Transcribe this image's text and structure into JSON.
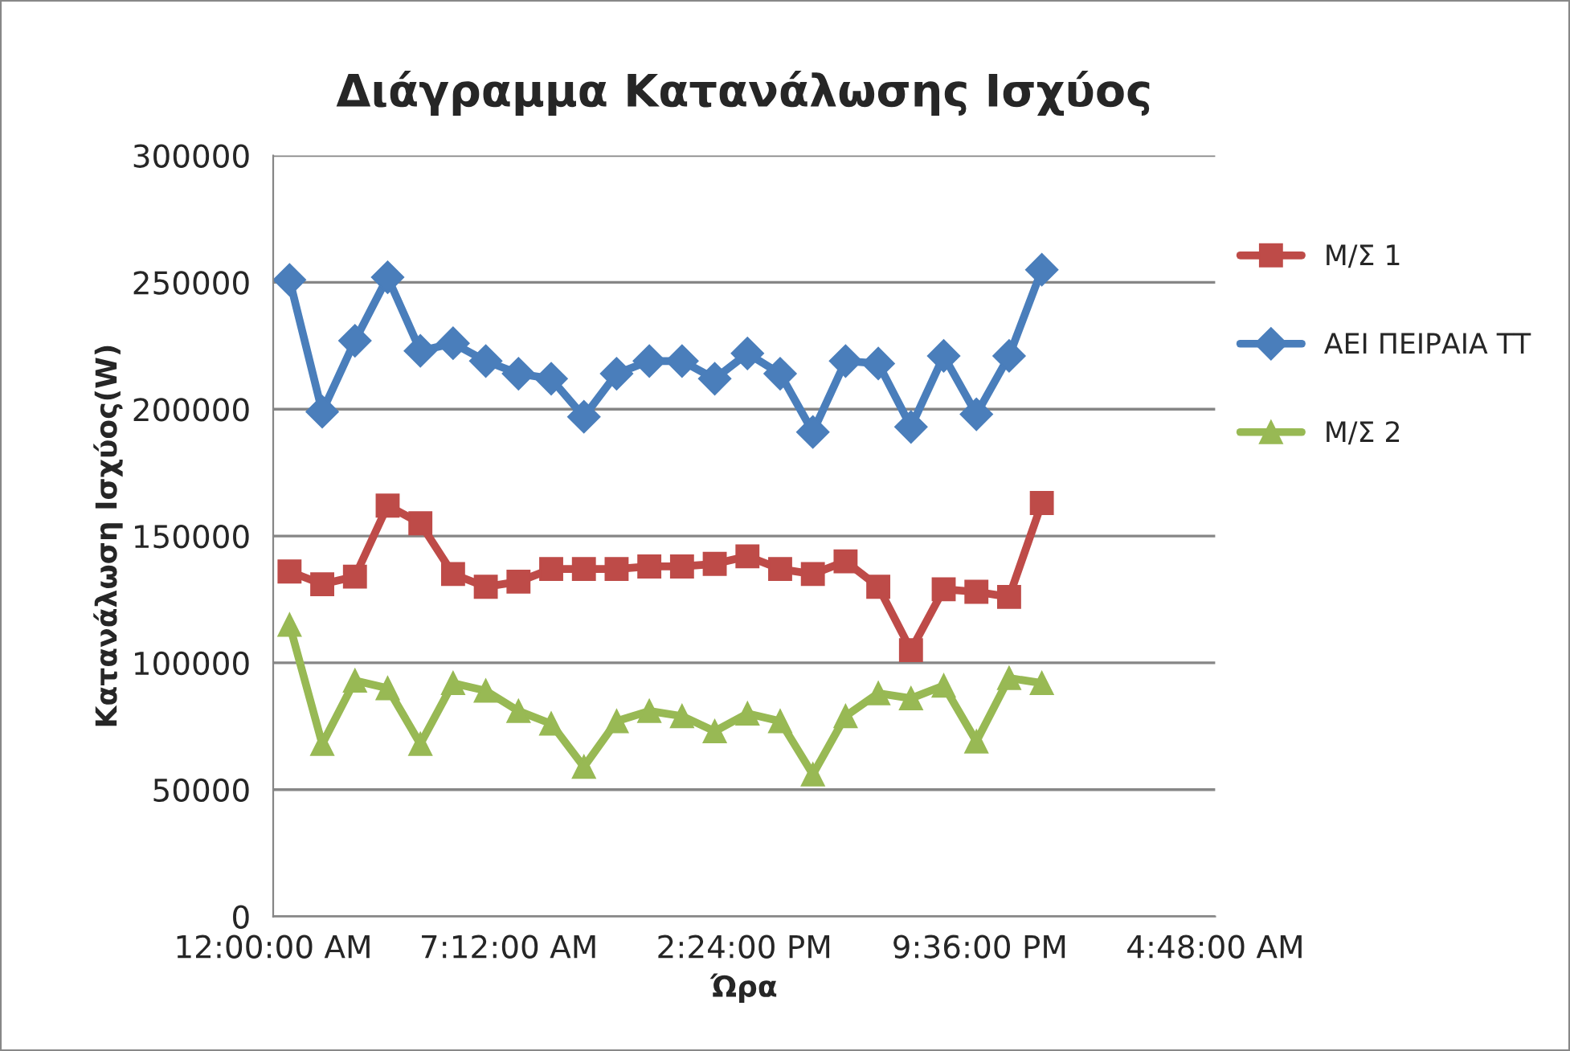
{
  "chart_data": {
    "type": "line",
    "title": "Διάγραμμα Κατανάλωσης Ισχύος",
    "xlabel": "Ώρα",
    "ylabel": "Κατανάλωση Ισχύος(W)",
    "x": [
      "1900-01-01T00:30",
      "1900-01-01T01:30",
      "1900-01-01T02:30",
      "1900-01-01T03:30",
      "1900-01-01T04:30",
      "1900-01-01T05:30",
      "1900-01-01T06:30",
      "1900-01-01T07:30",
      "1900-01-01T08:30",
      "1900-01-01T09:30",
      "1900-01-01T10:30",
      "1900-01-01T11:30",
      "1900-01-01T12:30",
      "1900-01-01T13:30",
      "1900-01-01T14:30",
      "1900-01-01T15:30",
      "1900-01-01T16:30",
      "1900-01-01T17:30",
      "1900-01-01T18:30",
      "1900-01-01T19:30",
      "1900-01-01T20:30",
      "1900-01-01T21:30",
      "1900-01-01T22:30",
      "1900-01-01T23:30"
    ],
    "series": [
      {
        "name": "Μ/Σ 1",
        "color": "#be4b48",
        "marker": "square",
        "values": [
          136000,
          131000,
          134000,
          162000,
          155000,
          135000,
          130000,
          132000,
          137000,
          137000,
          137000,
          138000,
          138000,
          139000,
          142000,
          137000,
          135000,
          140000,
          130000,
          105000,
          129000,
          128000,
          126000,
          163000
        ]
      },
      {
        "name": "ΑΕΙ ΠΕΙΡΑΙΑ ΤΤ",
        "color": "#4a7ebb",
        "marker": "diamond",
        "values": [
          251000,
          199000,
          227000,
          252000,
          223000,
          226000,
          219000,
          214000,
          212000,
          197000,
          214000,
          219000,
          219000,
          212000,
          222000,
          214000,
          191000,
          219000,
          218000,
          193000,
          221000,
          198000,
          221000,
          255000
        ]
      },
      {
        "name": "Μ/Σ 2",
        "color": "#98b954",
        "marker": "triangle",
        "values": [
          115000,
          68000,
          93000,
          90000,
          68000,
          92000,
          89000,
          81000,
          76000,
          59000,
          77000,
          81000,
          79000,
          73000,
          80000,
          77000,
          56000,
          79000,
          88000,
          86000,
          91000,
          69000,
          94000,
          92000
        ]
      }
    ],
    "xlim": [
      "1900-01-01T00:00",
      "1900-01-02T04:48"
    ],
    "xticks": [
      {
        "value": "1900-01-01T00:00",
        "label": "12:00:00 AM"
      },
      {
        "value": "1900-01-01T07:12",
        "label": "7:12:00 AM"
      },
      {
        "value": "1900-01-01T14:24",
        "label": "2:24:00 PM"
      },
      {
        "value": "1900-01-01T21:36",
        "label": "9:36:00 PM"
      },
      {
        "value": "1900-01-02T04:48",
        "label": "4:48:00 AM"
      }
    ],
    "ylim": [
      0,
      300000
    ],
    "yticks": [
      0,
      50000,
      100000,
      150000,
      200000,
      250000,
      300000
    ],
    "grid": "y",
    "legend": "right",
    "line_style": "solid"
  }
}
